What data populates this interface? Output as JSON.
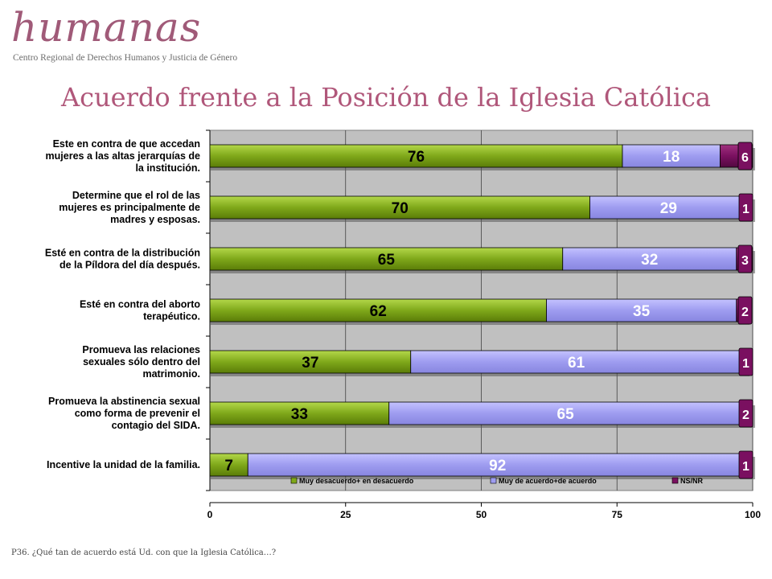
{
  "brand": {
    "name": "humanas",
    "tagline": "Centro Regional de Derechos Humanos y Justicia de Género"
  },
  "page_title": "Acuerdo frente a la Posición de la Iglesia Católica",
  "footnote": "P36. ¿Qué tan de acuerdo está Ud. con que la Iglesia Católica…?",
  "colors": {
    "series1": "#7fa81a",
    "series2": "#9e9cf0",
    "series3": "#7a1060",
    "plot_bg": "#c0c0c0",
    "title": "#b0577a"
  },
  "chart_data": {
    "type": "bar",
    "orientation": "horizontal",
    "stacked": true,
    "categories": [
      [
        "Este en contra de que accedan",
        "mujeres a las altas jerarquías de",
        "la institución."
      ],
      [
        "Determine que el rol de las",
        "mujeres es principalmente de",
        "madres y esposas."
      ],
      [
        "Esté en contra de la distribución",
        "de la Píldora del día después."
      ],
      [
        "Esté en contra del aborto",
        "terapéutico."
      ],
      [
        "Promueva las relaciones",
        "sexuales sólo dentro del",
        "matrimonio."
      ],
      [
        "Promueva la abstinencia sexual",
        "como forma de prevenir el",
        "contagio del SIDA."
      ],
      [
        "Incentive la unidad de la familia."
      ]
    ],
    "series": [
      {
        "name": "Muy desacuerdo+ en desacuerdo",
        "values": [
          76,
          70,
          65,
          62,
          37,
          33,
          7
        ]
      },
      {
        "name": "Muy de acuerdo+de acuerdo",
        "values": [
          18,
          29,
          32,
          35,
          61,
          65,
          92
        ]
      },
      {
        "name": "NS/NR",
        "values": [
          6,
          1,
          3,
          2,
          1,
          2,
          1
        ]
      }
    ],
    "xlim": [
      0,
      100
    ],
    "xticks": [
      0,
      25,
      50,
      75,
      100
    ],
    "grid": true,
    "legend_position": "bottom"
  }
}
